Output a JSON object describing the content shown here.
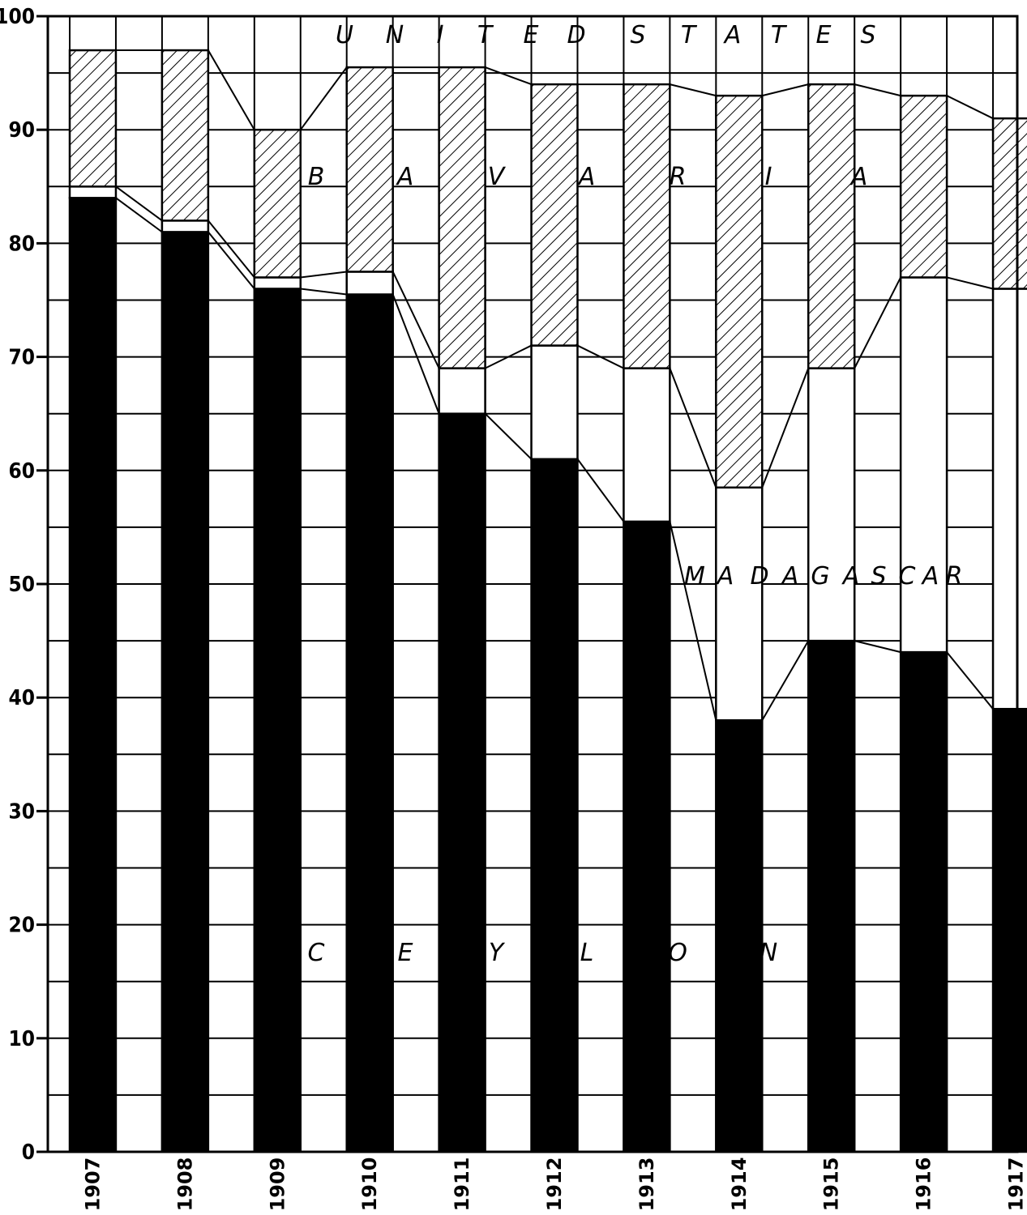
{
  "chart_data": {
    "type": "bar",
    "stacked": true,
    "title": "",
    "xlabel": "",
    "ylabel": "",
    "ylim": [
      0,
      100
    ],
    "yticks": [
      "0",
      "10",
      "20",
      "30",
      "40",
      "50",
      "60",
      "70",
      "80",
      "90",
      "100"
    ],
    "categories": [
      "1907",
      "1908",
      "1909",
      "1910",
      "1911",
      "1912",
      "1913",
      "1914",
      "1915",
      "1916",
      "1917"
    ],
    "series": [
      {
        "name": "CEYLON",
        "fill": "solid-black",
        "values": [
          84,
          81,
          76,
          75.5,
          65,
          61,
          55.5,
          38,
          45,
          44,
          39
        ]
      },
      {
        "name": "MADAGASCAR",
        "fill": "white",
        "values": [
          1,
          1,
          1,
          2,
          4,
          10,
          13.5,
          20.5,
          24,
          33,
          37
        ]
      },
      {
        "name": "BAVARIA",
        "fill": "diagonal-hatch",
        "values": [
          12,
          15,
          13,
          18,
          26.5,
          23,
          25,
          34.5,
          25,
          16,
          15
        ]
      },
      {
        "name": "UNITED STATES",
        "fill": "white",
        "values": [
          3,
          3,
          10,
          4.5,
          4.5,
          6,
          6,
          7,
          6,
          7,
          9
        ]
      }
    ],
    "grid": true,
    "legend": "none (region names written inside the chart areas)"
  },
  "region_labels": {
    "united_states": [
      "U",
      "N",
      "I",
      "T",
      "E",
      "D",
      "S",
      "T",
      "A",
      "T",
      "E",
      "S"
    ],
    "bavaria": [
      "B",
      "A",
      "V",
      "A",
      "R",
      "I",
      "A"
    ],
    "madagascar": [
      "M",
      "A",
      "D",
      "A",
      "G",
      "A",
      "S",
      "C",
      "A",
      "R"
    ],
    "ceylon": [
      "C",
      "E",
      "Y",
      "L",
      "O",
      "N"
    ]
  },
  "colors": {
    "ink": "#000000",
    "paper": "#ffffff"
  }
}
